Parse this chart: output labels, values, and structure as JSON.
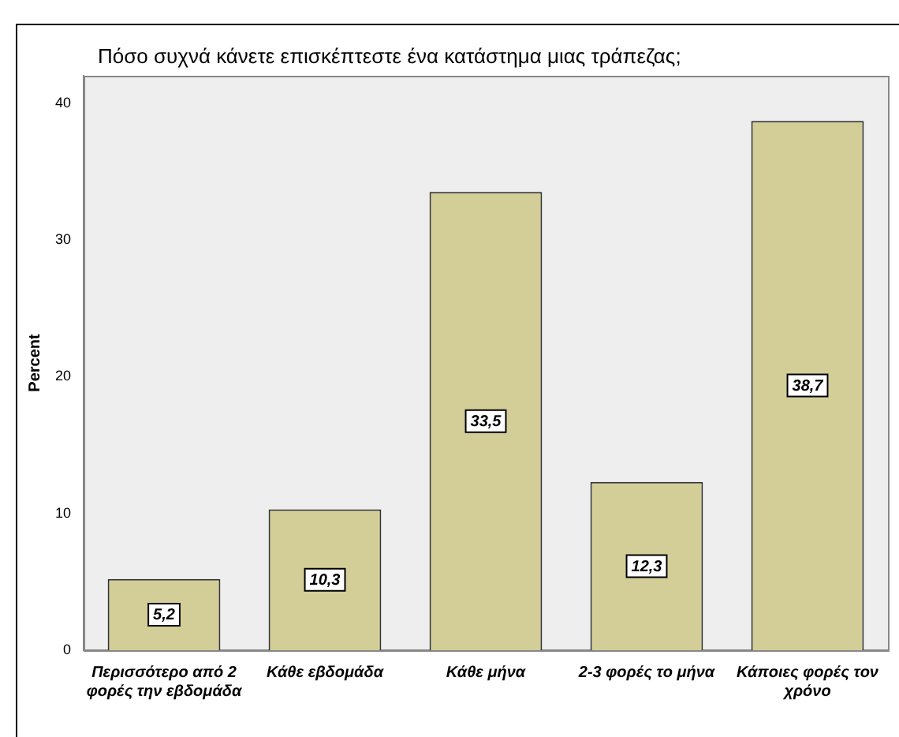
{
  "chart_data": {
    "type": "bar",
    "title": "Πόσο συχνά κάνετε επισκέπτεστε ένα κατάστημα μιας τράπεζας;",
    "ylabel": "Percent",
    "categories": [
      "Περισσότερο από 2 φορές την εβδομάδα",
      "Κάθε εβδομάδα",
      "Κάθε μήνα",
      "2-3 φορές το μήνα",
      "Κάποιες φορές τον χρόνο"
    ],
    "values": [
      5.2,
      10.3,
      33.5,
      12.3,
      38.7
    ],
    "value_labels": [
      "5,2",
      "10,3",
      "33,5",
      "12,3",
      "38,7"
    ],
    "color": "#d3ce97",
    "ylim": [
      0,
      42
    ],
    "yticks": [
      0,
      10,
      20,
      30,
      40
    ],
    "grid": false,
    "legend": false
  }
}
